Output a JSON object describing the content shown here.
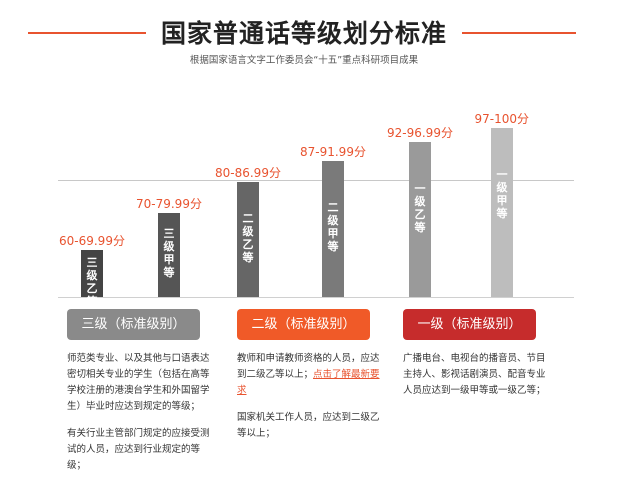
{
  "header": {
    "title": "国家普通话等级划分标准",
    "subtitle": "根据国家语言文字工作委员会“十五”重点科研项目成果"
  },
  "chart_data": {
    "type": "bar",
    "title": "国家普通话等级划分标准",
    "categories": [
      "三级乙等",
      "三级甲等",
      "二级乙等",
      "二级甲等",
      "一级乙等",
      "一级甲等"
    ],
    "bar_text": [
      "三级乙等",
      "三级甲等",
      "二级乙等",
      "二级甲等",
      "一级乙等",
      "一级甲等"
    ],
    "score_labels": [
      "60-69.99分",
      "70-79.99分",
      "80-86.99分",
      "87-91.99分",
      "92-96.99分",
      "97-100分"
    ],
    "values": [
      65,
      75,
      83.5,
      89.5,
      94.5,
      98.5
    ],
    "bar_colors": [
      "#444444",
      "#555555",
      "#666666",
      "#7a7a7a",
      "#9a9a9a",
      "#bdbdbd"
    ],
    "ylim": [
      0,
      100
    ],
    "xlabel": "",
    "ylabel": ""
  },
  "levels": [
    {
      "label": "三级（标准级别）",
      "color": "#8a8a8a",
      "paragraphs": [
        {
          "text": "师范类专业、以及其他与口语表达密切相关专业的学生（包括在高等学校注册的港澳台学生和外国留学生）毕业时应达到规定的等级；"
        },
        {
          "text": "有关行业主管部门规定的应接受测试的人员，应达到行业规定的等级；"
        }
      ]
    },
    {
      "label": "二级（标准级别）",
      "color": "#f05a28",
      "paragraphs": [
        {
          "text": "教师和申请教师资格的人员，应达到二级乙等以上；",
          "link": "点击了解最新要求"
        },
        {
          "text": "国家机关工作人员，应达到二级乙等以上；"
        }
      ]
    },
    {
      "label": "一级（标准级别）",
      "color": "#c62c2c",
      "paragraphs": [
        {
          "text": "广播电台、电视台的播音员、节目主持人、影视话剧演员、配音专业人员应达到一级甲等或一级乙等；"
        }
      ]
    }
  ]
}
